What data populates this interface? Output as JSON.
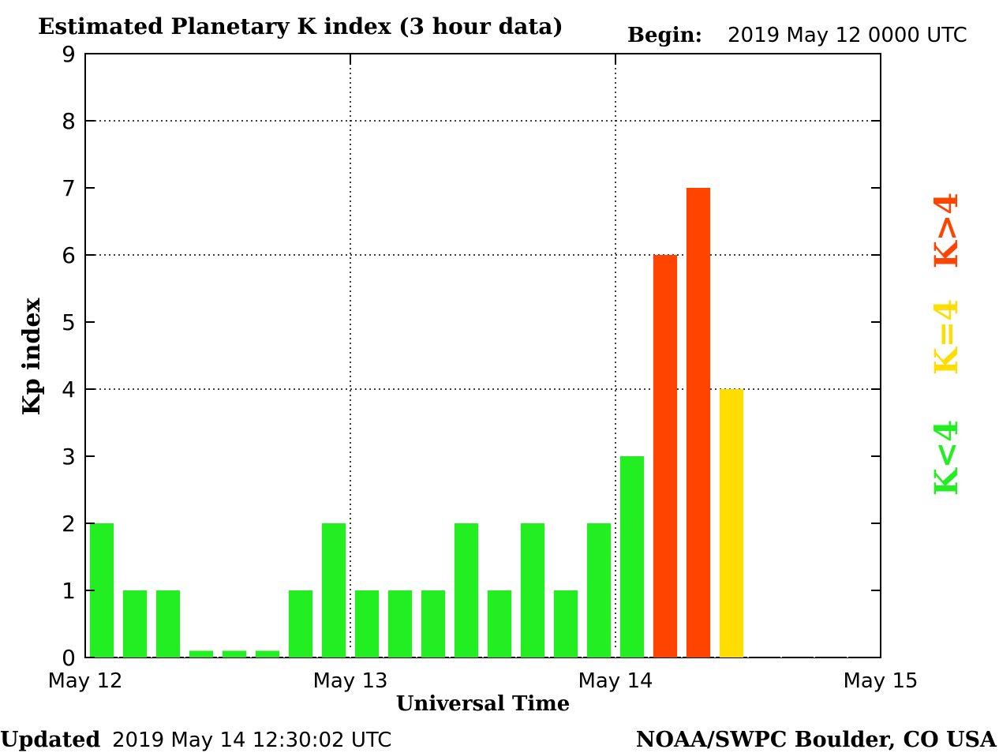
{
  "colors": {
    "quiet": "#22ee22",
    "active": "#ffdd00",
    "storm": "#ff4400",
    "axis": "#000000",
    "grid": "#000000"
  },
  "header": {
    "title": "Estimated Planetary K index (3 hour data)",
    "begin_label": "Begin:",
    "begin_value": "2019 May 12 0000 UTC"
  },
  "footer": {
    "updated_label": "Updated",
    "updated_value": "2019 May 14 12:30:02 UTC",
    "source": "NOAA/SWPC Boulder, CO USA"
  },
  "legend": {
    "storm_label": "K>4",
    "active_label": "K=4",
    "quiet_label": "K<4"
  },
  "chart_data": {
    "type": "bar",
    "title": "Estimated Planetary K index (3 hour data)",
    "xlabel": "Universal Time",
    "ylabel": "Kp index",
    "ylim": [
      0,
      9
    ],
    "yticks": [
      "0",
      "1",
      "2",
      "3",
      "4",
      "5",
      "6",
      "7",
      "8",
      "9"
    ],
    "xlim": [
      "2019-05-12 00:00",
      "2019-05-15 00:00"
    ],
    "xticks": [
      "May 12",
      "May 13",
      "May 14",
      "May 15"
    ],
    "bar_interval_hours": 3,
    "grid": {
      "horizontal_at": [
        4,
        6,
        8
      ],
      "vertical_at": [
        "May 13",
        "May 14"
      ],
      "style": "dotted"
    },
    "legend_position": "right",
    "values": [
      2,
      1,
      1,
      0.1,
      0.1,
      0.1,
      1,
      2,
      1,
      1,
      1,
      2,
      1,
      2,
      1,
      2,
      3,
      6,
      7,
      4
    ],
    "categories": [
      "May 12 00",
      "May 12 03",
      "May 12 06",
      "May 12 09",
      "May 12 12",
      "May 12 15",
      "May 12 18",
      "May 12 21",
      "May 13 00",
      "May 13 03",
      "May 13 06",
      "May 13 09",
      "May 13 12",
      "May 13 15",
      "May 13 18",
      "May 13 21",
      "May 14 00",
      "May 14 03",
      "May 14 06",
      "May 14 09"
    ]
  }
}
